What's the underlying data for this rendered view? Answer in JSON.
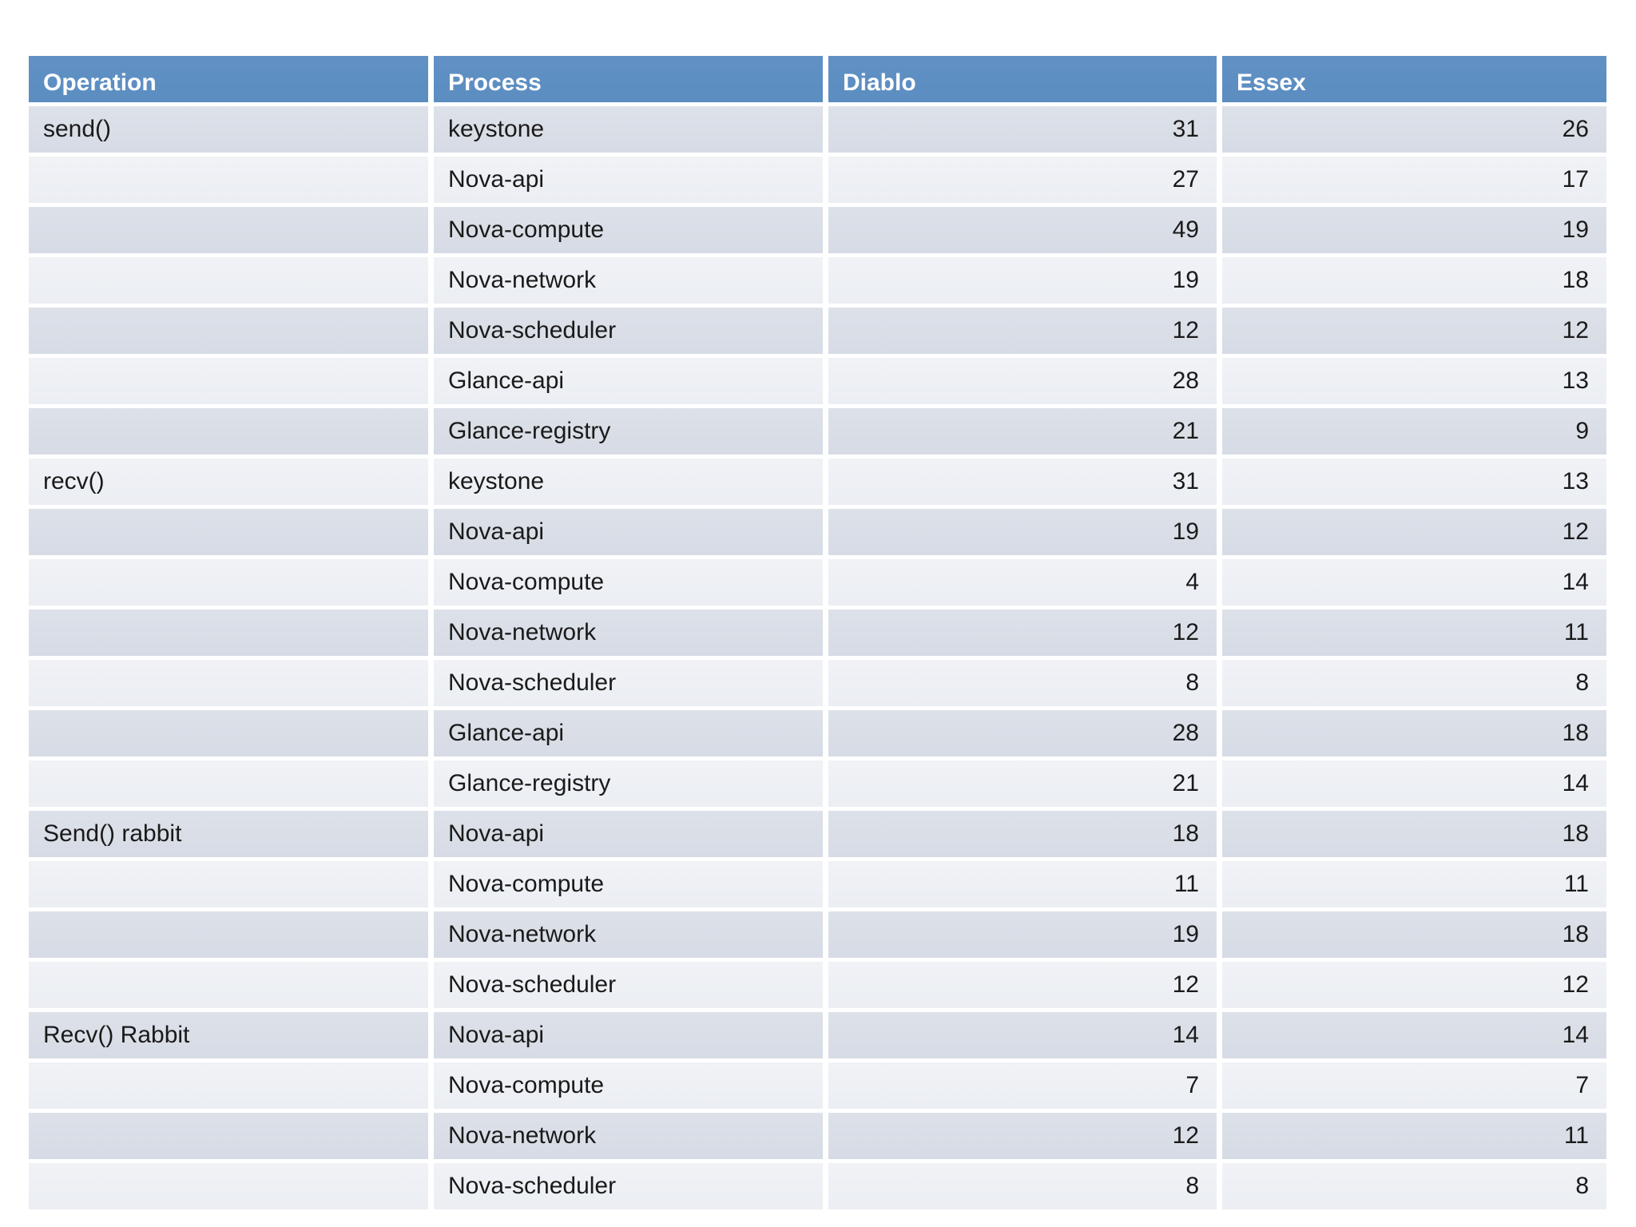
{
  "table": {
    "columns": [
      "Operation",
      "Process",
      "Diablo",
      "Essex"
    ],
    "rows": [
      {
        "operation": "send()",
        "process": "keystone",
        "diablo": 31,
        "essex": 26
      },
      {
        "operation": "",
        "process": "Nova-api",
        "diablo": 27,
        "essex": 17
      },
      {
        "operation": "",
        "process": "Nova-compute",
        "diablo": 49,
        "essex": 19
      },
      {
        "operation": "",
        "process": "Nova-network",
        "diablo": 19,
        "essex": 18
      },
      {
        "operation": "",
        "process": "Nova-scheduler",
        "diablo": 12,
        "essex": 12
      },
      {
        "operation": "",
        "process": "Glance-api",
        "diablo": 28,
        "essex": 13
      },
      {
        "operation": "",
        "process": "Glance-registry",
        "diablo": 21,
        "essex": 9
      },
      {
        "operation": "recv()",
        "process": "keystone",
        "diablo": 31,
        "essex": 13
      },
      {
        "operation": "",
        "process": "Nova-api",
        "diablo": 19,
        "essex": 12
      },
      {
        "operation": "",
        "process": "Nova-compute",
        "diablo": 4,
        "essex": 14
      },
      {
        "operation": "",
        "process": "Nova-network",
        "diablo": 12,
        "essex": 11
      },
      {
        "operation": "",
        "process": "Nova-scheduler",
        "diablo": 8,
        "essex": 8
      },
      {
        "operation": "",
        "process": "Glance-api",
        "diablo": 28,
        "essex": 18
      },
      {
        "operation": "",
        "process": "Glance-registry",
        "diablo": 21,
        "essex": 14
      },
      {
        "operation": "Send() rabbit",
        "process": "Nova-api",
        "diablo": 18,
        "essex": 18
      },
      {
        "operation": "",
        "process": "Nova-compute",
        "diablo": 11,
        "essex": 11
      },
      {
        "operation": "",
        "process": "Nova-network",
        "diablo": 19,
        "essex": 18
      },
      {
        "operation": "",
        "process": "Nova-scheduler",
        "diablo": 12,
        "essex": 12
      },
      {
        "operation": "Recv() Rabbit",
        "process": "Nova-api",
        "diablo": 14,
        "essex": 14
      },
      {
        "operation": "",
        "process": "Nova-compute",
        "diablo": 7,
        "essex": 7
      },
      {
        "operation": "",
        "process": "Nova-network",
        "diablo": 12,
        "essex": 11
      },
      {
        "operation": "",
        "process": "Nova-scheduler",
        "diablo": 8,
        "essex": 8
      }
    ],
    "colors": {
      "background": "#ffffff",
      "header_bg": "#5b8dc1",
      "header_bg_top": "#6191c5",
      "header_text": "#ffffff",
      "row_dark": "#d6dbe5",
      "row_light": "#ebeef3",
      "cell_text": "#1a1a1a"
    }
  }
}
